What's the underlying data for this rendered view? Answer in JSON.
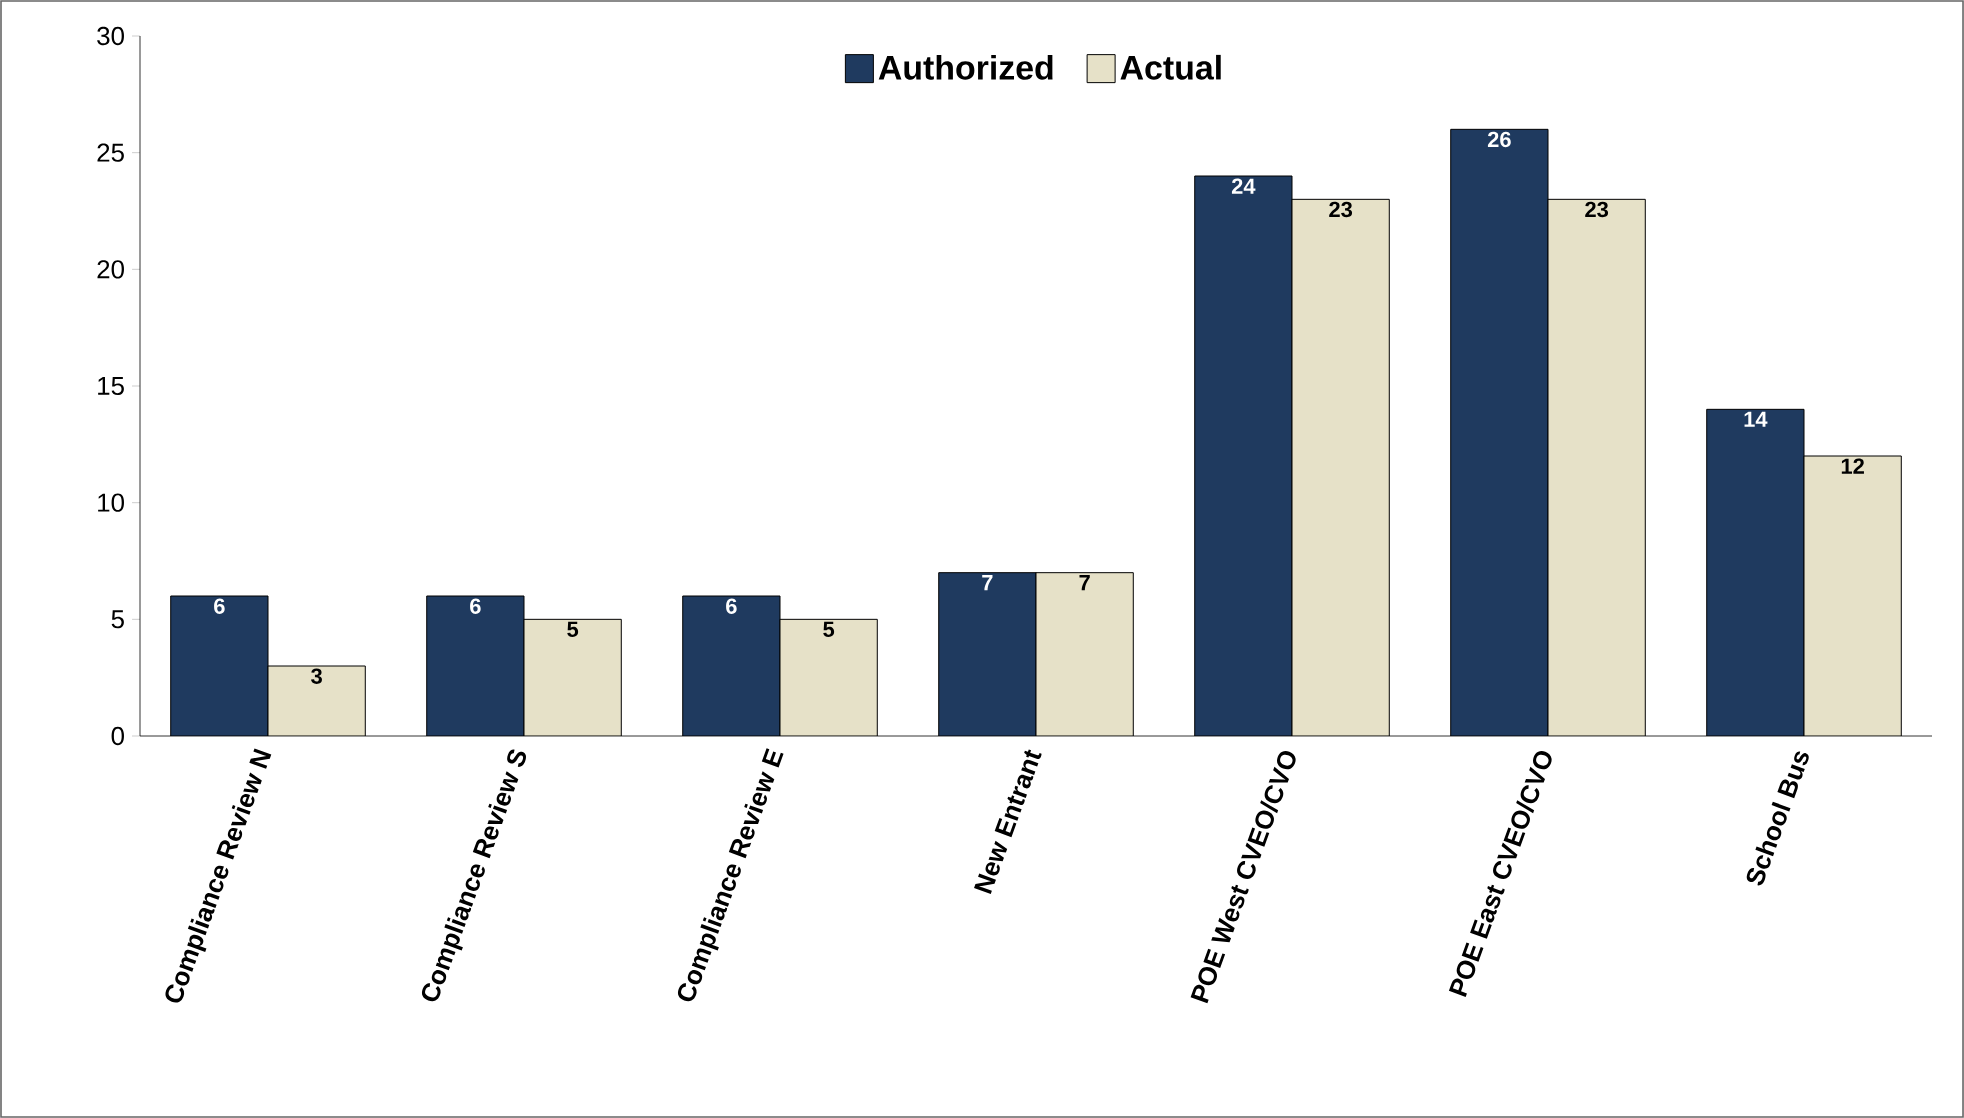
{
  "chart_data": {
    "type": "bar",
    "categories": [
      "Compliance Review N",
      "Compliance Review S",
      "Compliance Review E",
      "New Entrant",
      "POE West CVEO/CVO",
      "POE East CVEO/CVO",
      "School Bus"
    ],
    "series": [
      {
        "name": "Authorized",
        "color": "#1f3a5f",
        "values": [
          6,
          6,
          6,
          7,
          24,
          26,
          14
        ]
      },
      {
        "name": "Actual",
        "color": "#e6e1c8",
        "values": [
          3,
          5,
          5,
          7,
          23,
          23,
          12
        ]
      }
    ],
    "ylim": [
      0,
      30
    ],
    "yticks": [
      0,
      5,
      10,
      15,
      20,
      25,
      30
    ],
    "data_labels": true,
    "legend": "top",
    "grid": false
  }
}
